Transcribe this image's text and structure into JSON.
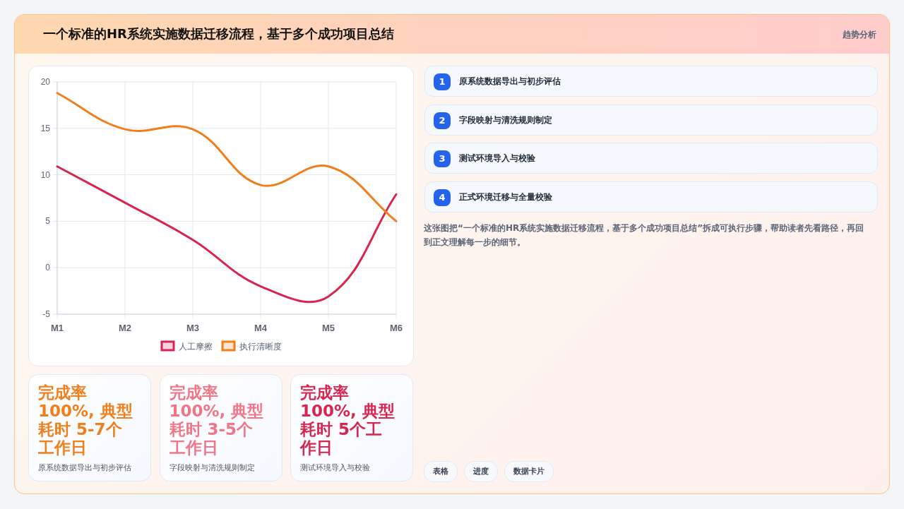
{
  "chart_data": [
    {
      "type": "other",
      "title": "一个标准的HR系统实施数据迁移流程，基于多个成功项目总结",
      "subtitle": "趋势分析"
    },
    {
      "type": "line",
      "categories": [
        "M1",
        "M2",
        "M3",
        "M4",
        "M5",
        "M6"
      ],
      "series": [
        {
          "name": "人工摩擦",
          "color": "#d8254f",
          "values": [
            10.9,
            7,
            3,
            -2,
            -3.1,
            7.9
          ]
        },
        {
          "name": "执行清晰度",
          "color": "#f07e1b",
          "values": [
            18.8,
            14.9,
            14.9,
            8.9,
            10.9,
            5
          ]
        }
      ],
      "ylim": [
        -5,
        20
      ],
      "yticks": [
        -5,
        0,
        5,
        10,
        15,
        20
      ],
      "grid": true,
      "legend": "bottom",
      "marker": "none",
      "line_style": "solid"
    },
    {
      "type": "other",
      "annotations": [
        "1",
        "原系统数据导出与初步评估"
      ]
    },
    {
      "type": "other",
      "annotations": [
        "2",
        "字段映射与清洗规则制定"
      ]
    },
    {
      "type": "other",
      "annotations": [
        "3",
        "测试环境导入与校验"
      ]
    },
    {
      "type": "other",
      "annotations": [
        "4",
        "正式环境迁移与全量校验"
      ]
    },
    {
      "type": "other",
      "annotations": [
        "这张图把“一个标准的HR系统实施数据迁移流程，基于多个成功项目总结”拆成可执行步骤，帮助读者先看路径，再回到正文理解每一步的细节。"
      ]
    },
    {
      "type": "other",
      "annotations": [
        "完成率 100%, 典型耗时 5-7个工作日",
        "原系统数据导出与初步评估",
        "完成率 100%, 典型耗时 3-5个工作日",
        "字段映射与清洗规则制定",
        "完成率 100%, 典型耗时 5个工作日",
        "测试环境导入与校验"
      ]
    },
    {
      "type": "other",
      "annotations": [
        "表格",
        "进度",
        "数据卡片"
      ]
    }
  ]
}
